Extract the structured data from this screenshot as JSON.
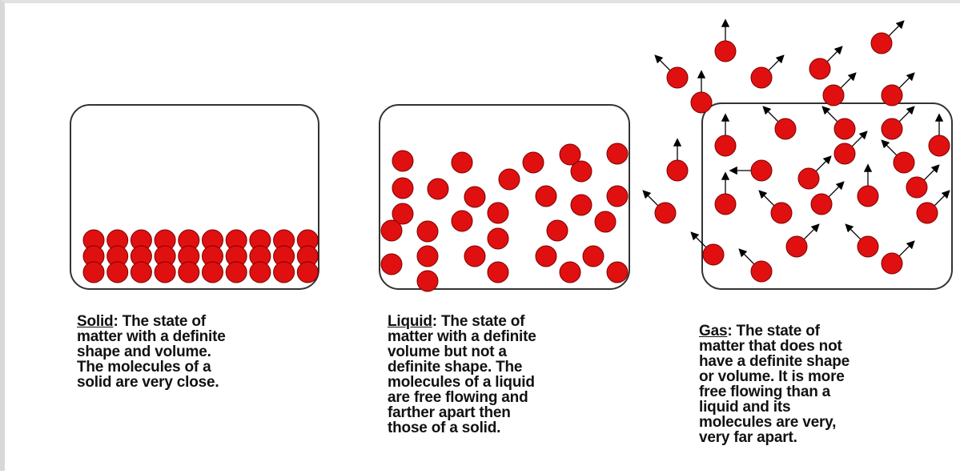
{
  "states": [
    {
      "term": "Solid",
      "lines": [
        ": The state of",
        "matter with a definite",
        "shape and volume.",
        "The molecules of a",
        "solid are very close."
      ]
    },
    {
      "term": "Liquid",
      "lines": [
        ": The state of",
        "matter with a definite",
        "volume but not a",
        "definite shape. The",
        "molecules of a liquid",
        "are free flowing and",
        "farther apart then",
        "those of a solid."
      ]
    },
    {
      "term": "Gas",
      "lines": [
        ": The state of",
        "matter that does not",
        "have a definite shape",
        "or volume. It is more",
        "free flowing than a",
        "liquid and its",
        "molecules are very,",
        "very far apart."
      ]
    }
  ]
}
